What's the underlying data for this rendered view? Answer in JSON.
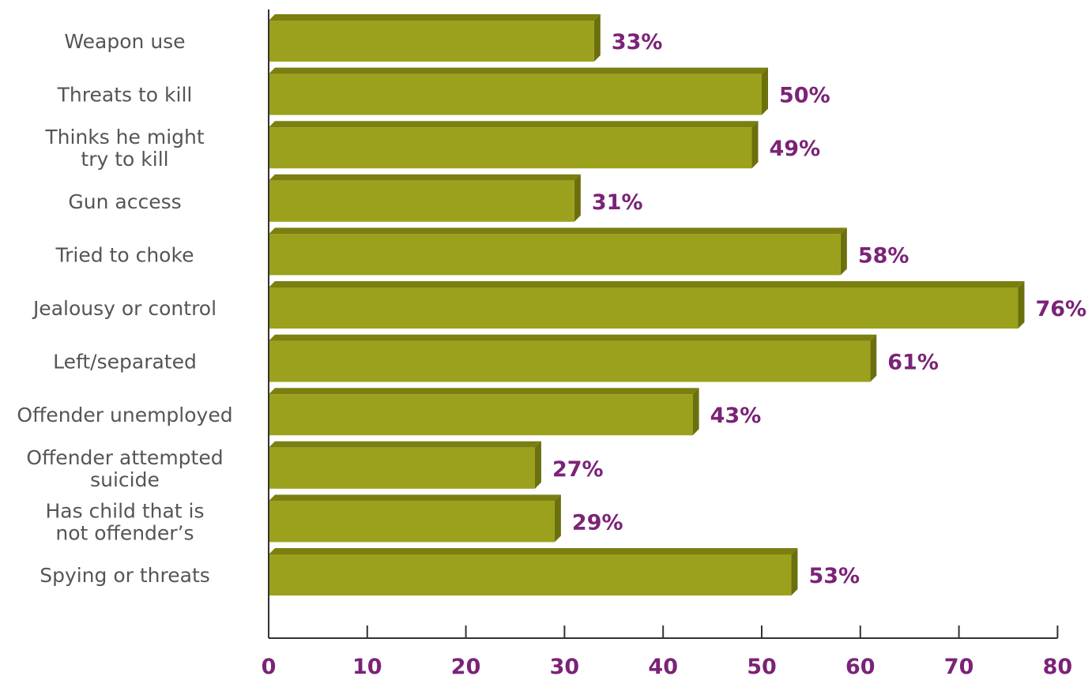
{
  "chart_data": {
    "type": "bar",
    "orientation": "horizontal",
    "title": "",
    "xlabel": "",
    "ylabel": "",
    "categories": [
      [
        "Weapon use"
      ],
      [
        "Threats to kill"
      ],
      [
        "Thinks he might",
        "try to kill"
      ],
      [
        "Gun access"
      ],
      [
        "Tried to choke"
      ],
      [
        "Jealousy or control"
      ],
      [
        "Left/separated"
      ],
      [
        "Offender unemployed"
      ],
      [
        "Offender attempted",
        "suicide"
      ],
      [
        "Has child that is",
        "not offender’s"
      ],
      [
        "Spying or threats"
      ]
    ],
    "values": [
      33,
      50,
      49,
      31,
      58,
      76,
      61,
      43,
      27,
      29,
      53
    ],
    "value_labels": [
      "33%",
      "50%",
      "49%",
      "31%",
      "58%",
      "76%",
      "61%",
      "43%",
      "27%",
      "29%",
      "53%"
    ],
    "xlim": [
      0,
      80
    ],
    "xticks": [
      0,
      10,
      20,
      30,
      40,
      50,
      60,
      70,
      80
    ],
    "xtick_labels": [
      "0",
      "10",
      "20",
      "30",
      "40",
      "50",
      "60",
      "70",
      "80"
    ],
    "grid": false,
    "legend": "none",
    "colors": {
      "bar_front": "#9ba11c",
      "bar_top": "#7a7f10",
      "bar_side": "#6b700c",
      "value_text": "#7b2378",
      "tick_text": "#7b2378",
      "category_text": "#555555",
      "axis": "#333333"
    }
  }
}
